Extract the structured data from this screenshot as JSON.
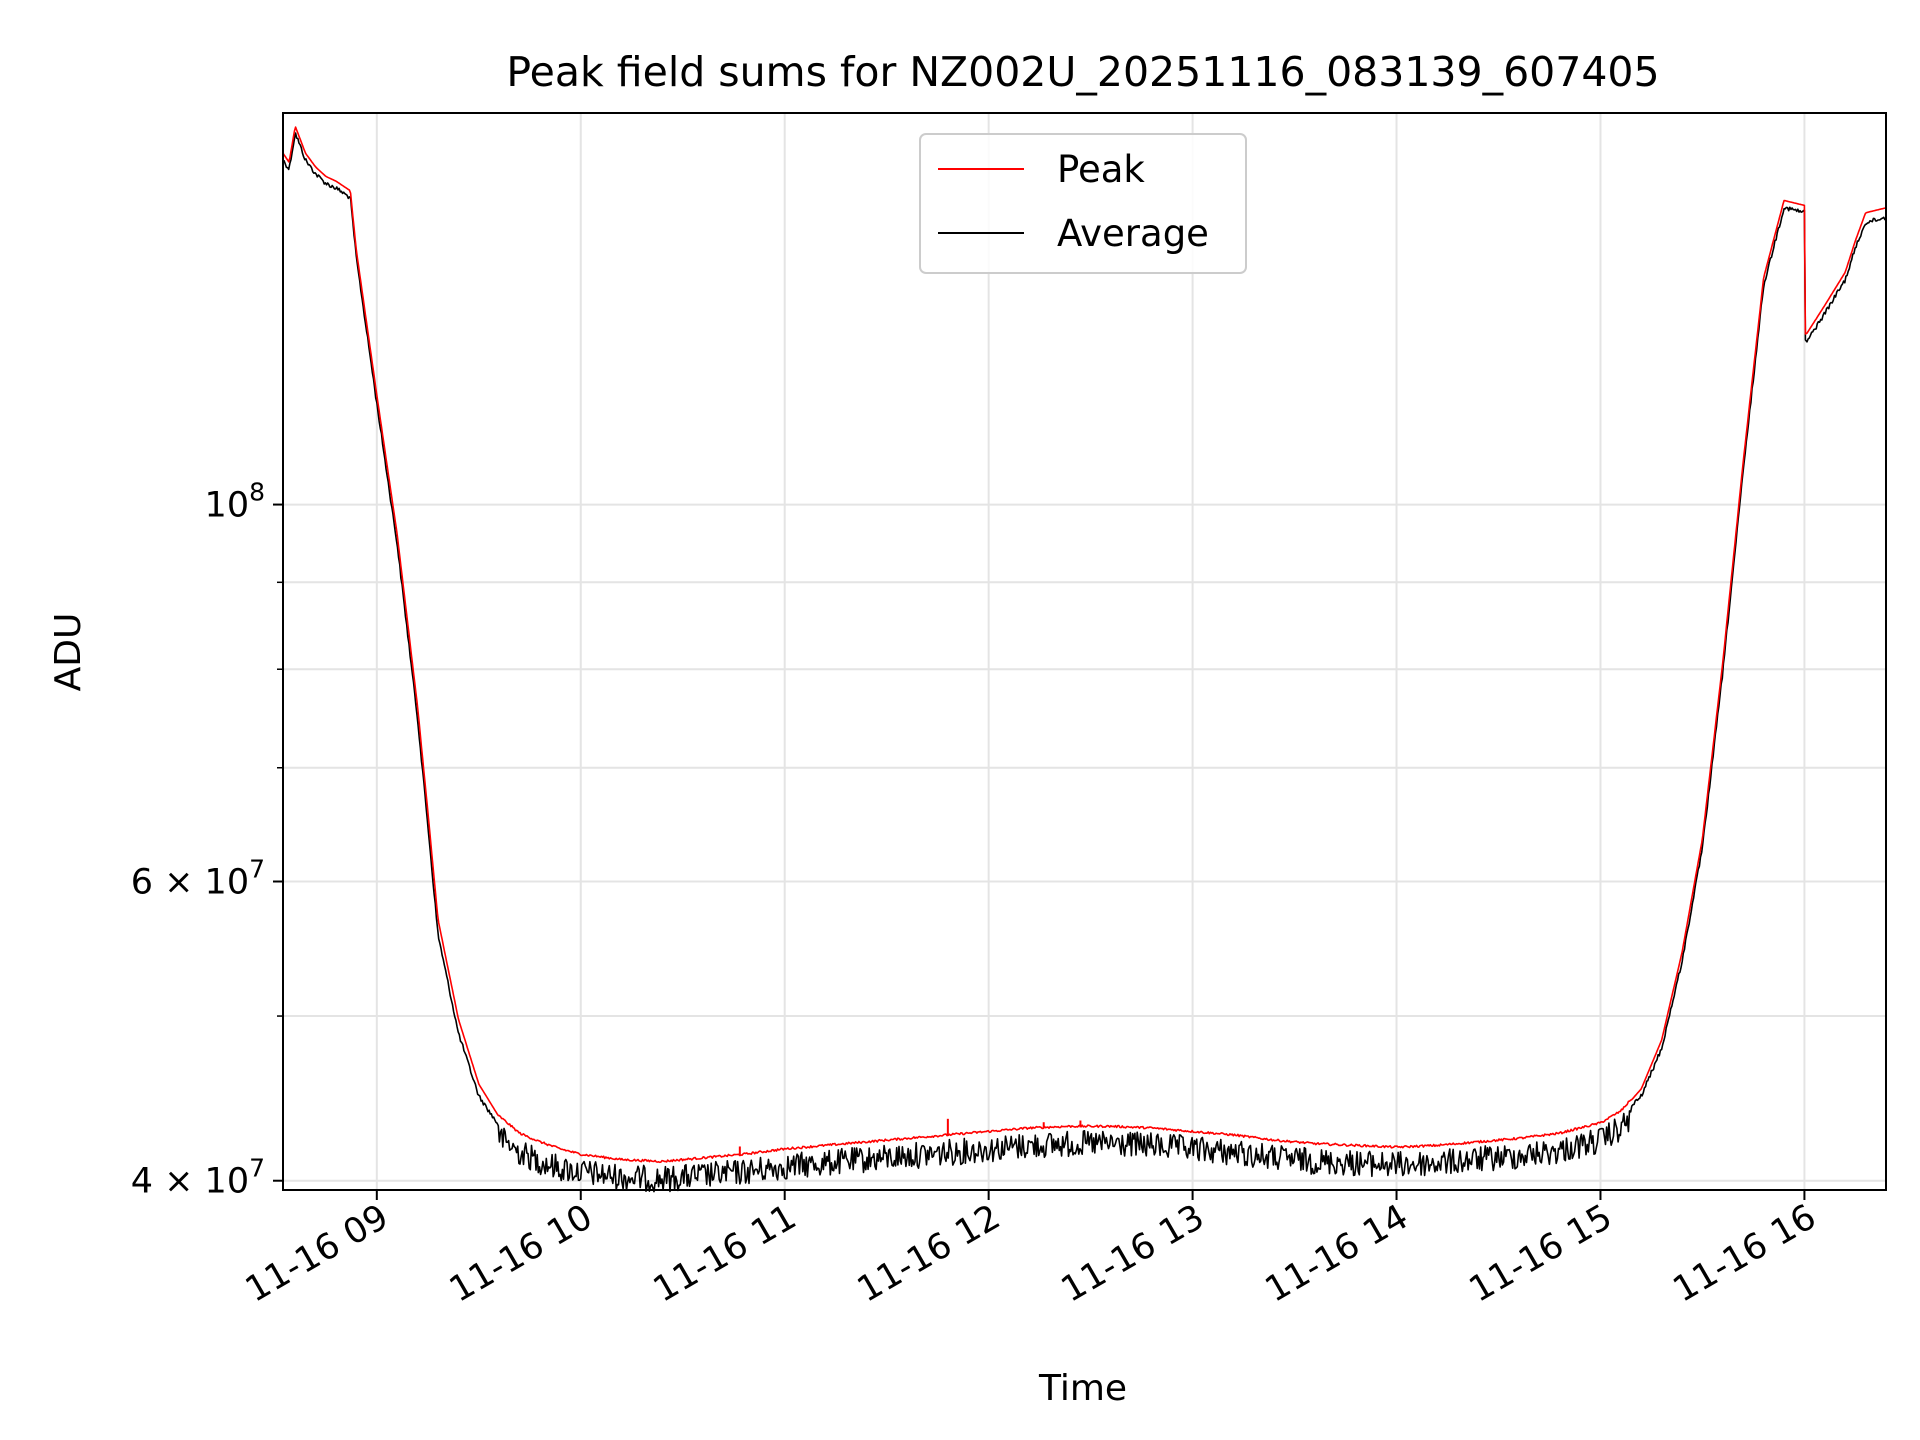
{
  "chart_data": {
    "type": "line",
    "title": "Peak field sums for NZ002U_20251116_083139_607405",
    "xlabel": "Time",
    "ylabel": "ADU",
    "y_scale": "log",
    "ylim": [
      39500000,
      170000000
    ],
    "x_range_hours": [
      8.54,
      16.4
    ],
    "x_ticks": [
      {
        "hour": 9,
        "label": "11-16 09"
      },
      {
        "hour": 10,
        "label": "11-16 10"
      },
      {
        "hour": 11,
        "label": "11-16 11"
      },
      {
        "hour": 12,
        "label": "11-16 12"
      },
      {
        "hour": 13,
        "label": "11-16 13"
      },
      {
        "hour": 14,
        "label": "11-16 14"
      },
      {
        "hour": 15,
        "label": "11-16 15"
      },
      {
        "hour": 16,
        "label": "11-16 16"
      }
    ],
    "y_major_ticks": [
      {
        "value": 40000000,
        "mantissa": "4",
        "exponent": "7"
      },
      {
        "value": 60000000,
        "mantissa": "6",
        "exponent": "7"
      },
      {
        "value": 100000000,
        "mantissa": "",
        "exponent": "8"
      }
    ],
    "y_minor_gridlines": [
      50000000,
      70000000,
      80000000,
      90000000
    ],
    "legend": {
      "position": "top-center",
      "entries": [
        {
          "label": "Peak",
          "color": "#ff0000"
        },
        {
          "label": "Average",
          "color": "#000000"
        }
      ]
    },
    "series": [
      {
        "name": "Average",
        "color": "#000000",
        "noise": true,
        "x_hours": [
          8.54,
          8.57,
          8.6,
          8.65,
          8.7,
          8.75,
          8.8,
          8.87,
          8.9,
          9.0,
          9.1,
          9.2,
          9.25,
          9.3,
          9.4,
          9.5,
          9.6,
          9.7,
          9.8,
          9.9,
          10.0,
          10.2,
          10.4,
          10.6,
          10.8,
          11.0,
          11.2,
          11.4,
          11.6,
          11.8,
          12.0,
          12.2,
          12.4,
          12.6,
          12.8,
          13.0,
          13.2,
          13.4,
          13.6,
          13.8,
          14.0,
          14.2,
          14.4,
          14.6,
          14.8,
          15.0,
          15.1,
          15.2,
          15.3,
          15.4,
          15.5,
          15.6,
          15.7,
          15.8,
          15.9,
          16.0,
          16.01,
          16.1,
          16.2,
          16.25,
          16.3,
          16.4
        ],
        "y_values": [
          160000000,
          158000000,
          166000000,
          160000000,
          157000000,
          155000000,
          154000000,
          152000000,
          140000000,
          115000000,
          95000000,
          75000000,
          65000000,
          56000000,
          49000000,
          45000000,
          43200000,
          42300000,
          41800000,
          41400000,
          41200000,
          40900000,
          40800000,
          41000000,
          41200000,
          41500000,
          41700000,
          41900000,
          42100000,
          42300000,
          42500000,
          42700000,
          42800000,
          42800000,
          42700000,
          42500000,
          42300000,
          42000000,
          41800000,
          41700000,
          41600000,
          41700000,
          41900000,
          42100000,
          42400000,
          43000000,
          43700000,
          45000000,
          48000000,
          54000000,
          63000000,
          80000000,
          105000000,
          135000000,
          150000000,
          149000000,
          125000000,
          130000000,
          136000000,
          142000000,
          147000000,
          148000000
        ]
      },
      {
        "name": "Peak",
        "color": "#ff0000",
        "noise": false,
        "x_hours": [
          8.54,
          8.57,
          8.6,
          8.65,
          8.7,
          8.75,
          8.8,
          8.87,
          8.9,
          9.0,
          9.1,
          9.2,
          9.25,
          9.3,
          9.4,
          9.5,
          9.6,
          9.7,
          9.8,
          9.9,
          10.0,
          10.2,
          10.4,
          10.6,
          10.8,
          11.0,
          11.2,
          11.4,
          11.6,
          11.8,
          12.0,
          12.2,
          12.4,
          12.6,
          12.8,
          13.0,
          13.2,
          13.4,
          13.6,
          13.8,
          14.0,
          14.2,
          14.4,
          14.6,
          14.8,
          15.0,
          15.1,
          15.2,
          15.3,
          15.4,
          15.5,
          15.6,
          15.7,
          15.8,
          15.9,
          16.0,
          16.01,
          16.1,
          16.2,
          16.25,
          16.3,
          16.4
        ],
        "y_values": [
          161000000,
          159000000,
          167000000,
          161000000,
          158000000,
          156000000,
          155000000,
          153000000,
          141000000,
          116000000,
          96000000,
          76000000,
          66000000,
          57000000,
          49800000,
          45600000,
          43600000,
          42600000,
          42100000,
          41700000,
          41400000,
          41100000,
          41000000,
          41200000,
          41400000,
          41700000,
          41900000,
          42100000,
          42300000,
          42500000,
          42700000,
          42900000,
          43000000,
          43000000,
          42900000,
          42700000,
          42500000,
          42200000,
          42000000,
          41900000,
          41800000,
          41900000,
          42100000,
          42300000,
          42600000,
          43200000,
          43900000,
          45300000,
          48400000,
          54500000,
          63600000,
          80800000,
          106000000,
          136000000,
          151000000,
          150000000,
          126000000,
          131000000,
          137000000,
          143000000,
          148500000,
          149500000
        ]
      }
    ],
    "peak_spikes": [
      {
        "hour": 11.8,
        "value": 43500000
      },
      {
        "hour": 12.27,
        "value": 43300000
      },
      {
        "hour": 12.45,
        "value": 43400000
      },
      {
        "hour": 10.78,
        "value": 41900000
      }
    ]
  }
}
